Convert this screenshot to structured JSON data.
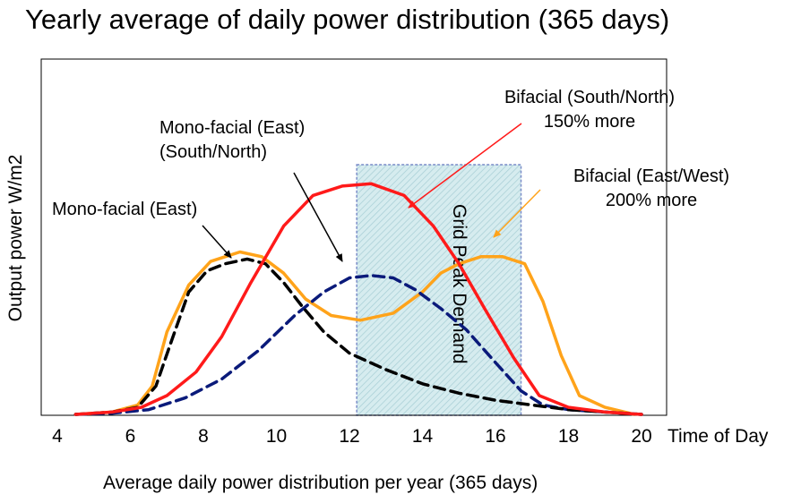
{
  "title": "Yearly average of daily power distribution (365 days)",
  "caption": "Average daily power distribution per year (365 days)",
  "chart_data": {
    "type": "line",
    "xlabel": "Time of Day",
    "ylabel": "Output power W/m2",
    "xlim": [
      4,
      20
    ],
    "ylim": [
      0,
      100
    ],
    "x_ticks": [
      4,
      6,
      8,
      10,
      12,
      14,
      16,
      18,
      20
    ],
    "grid": false,
    "band": {
      "label": "Grid Peak Demand",
      "x": [
        12.2,
        16.7
      ]
    },
    "series": [
      {
        "label": "Mono-facial (East)",
        "color": "#000000",
        "dash": true,
        "points": [
          [
            4.5,
            0
          ],
          [
            5.5,
            1
          ],
          [
            6.2,
            3
          ],
          [
            6.7,
            12
          ],
          [
            7.1,
            30
          ],
          [
            7.6,
            52
          ],
          [
            8.1,
            61
          ],
          [
            8.6,
            64
          ],
          [
            9.2,
            66
          ],
          [
            9.7,
            64
          ],
          [
            10.2,
            56
          ],
          [
            10.7,
            46
          ],
          [
            11.3,
            35
          ],
          [
            12.0,
            26
          ],
          [
            13.0,
            19
          ],
          [
            14.0,
            13
          ],
          [
            15.0,
            9
          ],
          [
            16.0,
            6
          ],
          [
            17.0,
            4
          ],
          [
            18.0,
            2
          ],
          [
            19.0,
            1
          ],
          [
            20.0,
            0
          ]
        ]
      },
      {
        "label": "Mono-facial (East) (South/North)",
        "color": "#0a1a7a",
        "dash": true,
        "points": [
          [
            4.5,
            0
          ],
          [
            5.5,
            0.5
          ],
          [
            6.5,
            2
          ],
          [
            7.5,
            7
          ],
          [
            8.5,
            15
          ],
          [
            9.5,
            27
          ],
          [
            10.5,
            42
          ],
          [
            11.3,
            52
          ],
          [
            12.0,
            58
          ],
          [
            12.6,
            59
          ],
          [
            13.2,
            58
          ],
          [
            13.8,
            53
          ],
          [
            14.5,
            45
          ],
          [
            15.2,
            36
          ],
          [
            16.0,
            22
          ],
          [
            16.7,
            10
          ],
          [
            17.3,
            4
          ],
          [
            18.0,
            2
          ],
          [
            19.0,
            1
          ],
          [
            20.0,
            0
          ]
        ]
      },
      {
        "label": "Bifacial (South/North)",
        "color": "#ff1a1a",
        "points": [
          [
            4.5,
            0
          ],
          [
            5.5,
            1
          ],
          [
            6.3,
            3
          ],
          [
            7.0,
            8
          ],
          [
            7.8,
            18
          ],
          [
            8.5,
            33
          ],
          [
            9.3,
            56
          ],
          [
            10.2,
            80
          ],
          [
            11.0,
            93
          ],
          [
            11.8,
            97
          ],
          [
            12.6,
            98
          ],
          [
            13.5,
            93
          ],
          [
            14.3,
            80
          ],
          [
            15.0,
            64
          ],
          [
            15.7,
            45
          ],
          [
            16.5,
            24
          ],
          [
            17.2,
            8
          ],
          [
            18.0,
            3
          ],
          [
            19.0,
            1
          ],
          [
            20.0,
            0
          ]
        ]
      },
      {
        "label": "Bifacial (East/West)",
        "color": "#ffa31a",
        "points": [
          [
            4.5,
            0
          ],
          [
            5.5,
            1
          ],
          [
            6.2,
            4
          ],
          [
            6.6,
            12
          ],
          [
            7.0,
            35
          ],
          [
            7.6,
            55
          ],
          [
            8.2,
            65
          ],
          [
            9.0,
            69
          ],
          [
            9.6,
            67
          ],
          [
            10.2,
            60
          ],
          [
            10.8,
            49
          ],
          [
            11.5,
            42
          ],
          [
            12.3,
            40
          ],
          [
            13.2,
            43
          ],
          [
            14.0,
            52
          ],
          [
            14.5,
            60
          ],
          [
            15.0,
            64
          ],
          [
            15.6,
            67
          ],
          [
            16.2,
            67
          ],
          [
            16.8,
            64
          ],
          [
            17.3,
            48
          ],
          [
            17.8,
            25
          ],
          [
            18.3,
            8
          ],
          [
            19.0,
            3
          ],
          [
            19.8,
            0
          ]
        ]
      }
    ],
    "annotations": [
      {
        "lines": [
          "Mono-facial (East)"
        ],
        "target": "Mono-facial (East)"
      },
      {
        "lines": [
          "Mono-facial (East)",
          "(South/North)"
        ],
        "target": "Mono-facial (East) (South/North)"
      },
      {
        "lines": [
          "Bifacial (South/North)",
          "150% more"
        ],
        "target": "Bifacial (South/North)"
      },
      {
        "lines": [
          "Bifacial (East/West)",
          "200% more"
        ],
        "target": "Bifacial (East/West)"
      }
    ]
  }
}
